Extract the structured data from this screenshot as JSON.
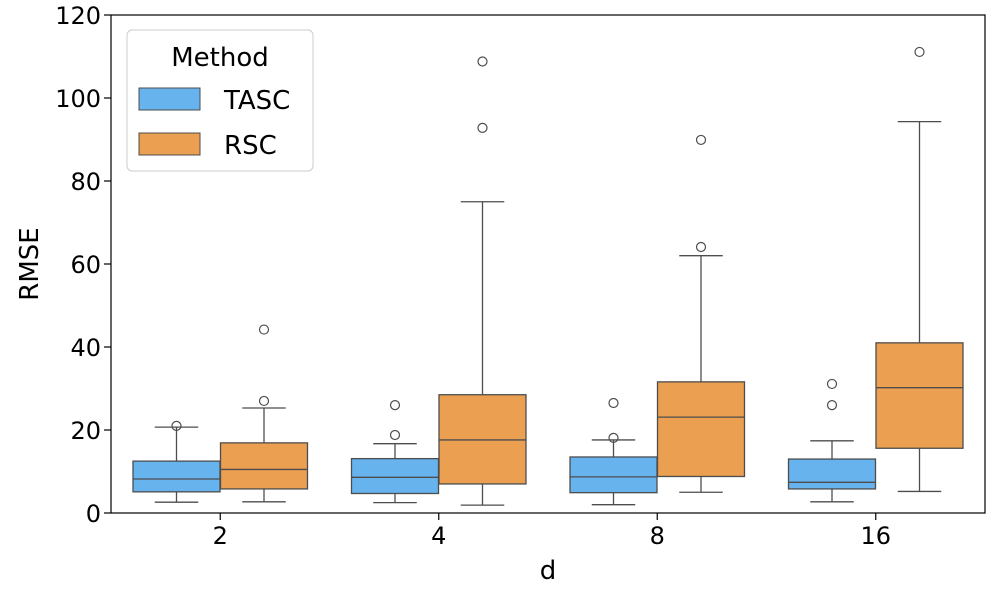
{
  "chart_data": {
    "type": "boxplot",
    "title": "",
    "xlabel": "d",
    "ylabel": "RMSE",
    "ylim": [
      0,
      120
    ],
    "yticks": [
      0,
      20,
      40,
      60,
      80,
      100,
      120
    ],
    "categories": [
      "2",
      "4",
      "8",
      "16"
    ],
    "legend": {
      "title": "Method",
      "placement": "top-left"
    },
    "series": [
      {
        "name": "TASC",
        "color": "#66b3ee",
        "boxes": [
          {
            "whisker_low": 2.6,
            "q1": 5.1,
            "median": 8.2,
            "q3": 12.5,
            "whisker_high": 20.7,
            "outliers": [
              21.0
            ]
          },
          {
            "whisker_low": 2.5,
            "q1": 4.7,
            "median": 8.6,
            "q3": 13.1,
            "whisker_high": 16.7,
            "outliers": [
              18.8,
              26.0
            ]
          },
          {
            "whisker_low": 2.0,
            "q1": 4.9,
            "median": 8.7,
            "q3": 13.5,
            "whisker_high": 17.6,
            "outliers": [
              18.1,
              26.5
            ]
          },
          {
            "whisker_low": 2.7,
            "q1": 5.8,
            "median": 7.4,
            "q3": 13.0,
            "whisker_high": 17.4,
            "outliers": [
              26.0,
              31.1
            ]
          }
        ]
      },
      {
        "name": "RSC",
        "color": "#eb9f50",
        "boxes": [
          {
            "whisker_low": 2.7,
            "q1": 5.8,
            "median": 10.5,
            "q3": 16.9,
            "whisker_high": 25.3,
            "outliers": [
              27.0,
              44.2
            ]
          },
          {
            "whisker_low": 1.9,
            "q1": 7.0,
            "median": 17.6,
            "q3": 28.5,
            "whisker_high": 75.0,
            "outliers": [
              92.8,
              108.8
            ]
          },
          {
            "whisker_low": 5.0,
            "q1": 8.8,
            "median": 23.1,
            "q3": 31.6,
            "whisker_high": 62.0,
            "outliers": [
              64.1,
              89.9
            ]
          },
          {
            "whisker_low": 5.2,
            "q1": 15.6,
            "median": 30.2,
            "q3": 41.0,
            "whisker_high": 94.3,
            "outliers": [
              111.1
            ]
          }
        ]
      }
    ]
  }
}
